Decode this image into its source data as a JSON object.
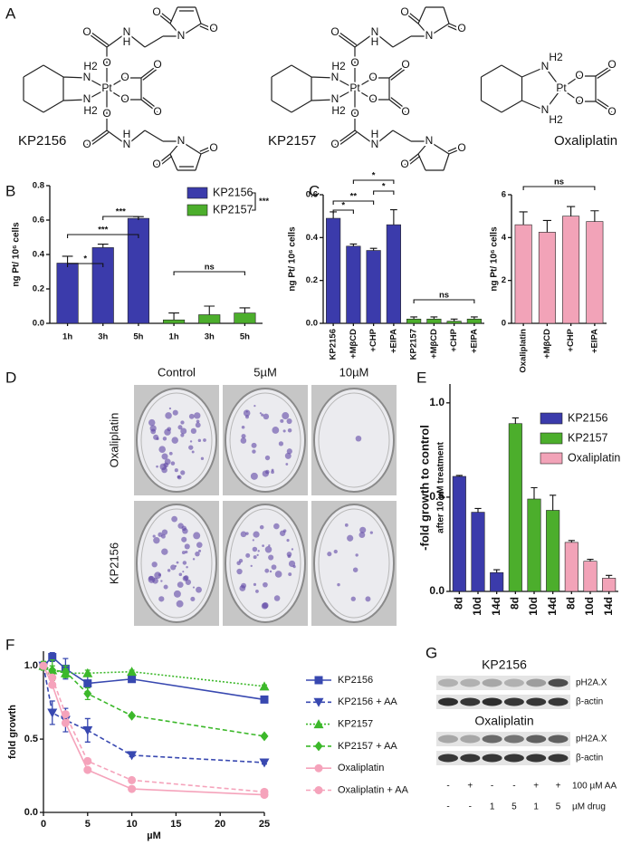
{
  "panel_labels": [
    "A",
    "B",
    "C",
    "D",
    "E",
    "F",
    "G"
  ],
  "structures": [
    {
      "name": "KP2156",
      "atoms": [
        "Pt",
        "N",
        "H2",
        "N",
        "H2",
        "O",
        "O",
        "N",
        "H",
        "N",
        "O",
        "O",
        "O",
        "O",
        "N",
        "H",
        "N",
        "O",
        "O",
        "O",
        "O",
        "O",
        "O"
      ]
    },
    {
      "name": "KP2157",
      "atoms": [
        "Pt",
        "N",
        "H2",
        "N",
        "H2",
        "O",
        "O",
        "N",
        "H",
        "N",
        "O",
        "O",
        "O",
        "O",
        "N",
        "H",
        "N",
        "O",
        "O",
        "O",
        "O",
        "O",
        "O"
      ]
    },
    {
      "name": "Oxaliplatin",
      "atoms": [
        "Pt",
        "N",
        "H2",
        "N",
        "H2",
        "O",
        "O",
        "O",
        "O"
      ]
    }
  ],
  "chart_data": [
    {
      "type": "bar",
      "y_label": "ng Pt/ 10⁶ cells",
      "categories": [
        "1h",
        "3h",
        "5h",
        "1h",
        "3h",
        "5h"
      ],
      "series": [
        {
          "name": "KP2156",
          "color": "#3b3bab",
          "values": [
            0.35,
            0.44,
            0.61,
            null,
            null,
            null
          ],
          "errors": [
            0.04,
            0.02,
            0.01,
            null,
            null,
            null
          ]
        },
        {
          "name": "KP2157",
          "color": "#4cae2c",
          "values": [
            null,
            null,
            null,
            0.02,
            0.05,
            0.06
          ],
          "errors": [
            null,
            null,
            null,
            0.04,
            0.05,
            0.03
          ]
        }
      ],
      "ylim": [
        0,
        0.8
      ],
      "yticks": [
        {
          "value": 0,
          "label": "0.0"
        },
        {
          "value": 0.2,
          "label": "0.2"
        },
        {
          "value": 0.4,
          "label": "0.4"
        },
        {
          "value": 0.6,
          "label": "0.6"
        },
        {
          "value": 0.8,
          "label": "0.8"
        }
      ],
      "legend": "top-right",
      "legend_annotation": "***",
      "annotations": [
        {
          "label": "*",
          "from": 0,
          "to": 1
        },
        {
          "label": "***",
          "from": 0,
          "to": 2
        },
        {
          "label": "***",
          "from": 1,
          "to": 2
        },
        {
          "label": "ns",
          "from": 3,
          "to": 5
        }
      ]
    },
    {
      "type": "bar",
      "y_label": "ng Pt/ 10⁶ cells",
      "categories": [
        "KP2156",
        "+MβCD",
        "+CHP",
        "+EIPA",
        "KP2157",
        "+MβCD",
        "+CHP",
        "+EIPA"
      ],
      "series": [
        {
          "color": "#3b3bab",
          "values": [
            0.49,
            0.36,
            0.34,
            0.46,
            null,
            null,
            null,
            null
          ],
          "errors": [
            0.03,
            0.01,
            0.01,
            0.07,
            null,
            null,
            null,
            null
          ]
        },
        {
          "color": "#4cae2c",
          "values": [
            null,
            null,
            null,
            null,
            0.02,
            0.02,
            0.01,
            0.02
          ],
          "errors": [
            null,
            null,
            null,
            null,
            0.01,
            0.01,
            0.01,
            0.01
          ]
        }
      ],
      "ylim": [
        0,
        0.6
      ],
      "yticks": [
        {
          "value": 0,
          "label": "0.0"
        },
        {
          "value": 0.2,
          "label": "0.2"
        },
        {
          "value": 0.4,
          "label": "0.4"
        },
        {
          "value": 0.6,
          "label": "0.6"
        }
      ],
      "annotations": [
        {
          "label": "*",
          "from": 0,
          "to": 1
        },
        {
          "label": "**",
          "from": 0,
          "to": 2
        },
        {
          "label": "*",
          "from": 2,
          "to": 3
        },
        {
          "label": "*",
          "from": 1,
          "to": 3
        },
        {
          "label": "ns",
          "from": 4,
          "to": 7
        }
      ]
    },
    {
      "type": "bar",
      "y_label": "ng Pt/ 10⁶ cells",
      "categories": [
        "Oxaliplatin",
        "+MβCD",
        "+CHP",
        "+EIPA"
      ],
      "series": [
        {
          "color": "#f2a3b8",
          "values": [
            4.6,
            4.25,
            5.0,
            4.75
          ],
          "errors": [
            0.6,
            0.55,
            0.45,
            0.5
          ]
        }
      ],
      "ylim": [
        0,
        6
      ],
      "yticks": [
        0,
        2,
        4,
        6
      ],
      "annotations": [
        {
          "label": "ns",
          "from": 0,
          "to": 3
        }
      ]
    },
    {
      "type": "bar",
      "y_label": [
        "-fold growth to control",
        "after 10 µM treatment"
      ],
      "categories": [
        "8d",
        "10d",
        "14d",
        "8d",
        "10d",
        "14d",
        "8d",
        "10d",
        "14d"
      ],
      "series": [
        {
          "name": "KP2156",
          "color": "#3b3bab",
          "values": [
            0.61,
            0.42,
            0.1,
            null,
            null,
            null,
            null,
            null,
            null
          ],
          "errors": [
            0.005,
            0.02,
            0.015,
            null,
            null,
            null,
            null,
            null,
            null
          ]
        },
        {
          "name": "KP2157",
          "color": "#4cae2c",
          "values": [
            null,
            null,
            null,
            0.89,
            0.49,
            0.43,
            null,
            null,
            null
          ],
          "errors": [
            null,
            null,
            null,
            0.03,
            0.06,
            0.08,
            null,
            null,
            null
          ]
        },
        {
          "name": "Oxaliplatin",
          "color": "#f2a3b8",
          "values": [
            null,
            null,
            null,
            null,
            null,
            null,
            0.26,
            0.16,
            0.07
          ],
          "errors": [
            null,
            null,
            null,
            null,
            null,
            null,
            0.01,
            0.01,
            0.015
          ]
        }
      ],
      "ylim": [
        0,
        1.1
      ],
      "yticks": [
        {
          "value": 0,
          "label": "0.0"
        },
        {
          "value": 0.5,
          "label": "0.5"
        },
        {
          "value": 1,
          "label": "1.0"
        }
      ],
      "legend": "top-right"
    },
    {
      "type": "line",
      "x_label": "µM",
      "y_label": "fold growth",
      "x": [
        0,
        1,
        2.5,
        5,
        10,
        25
      ],
      "xlim": [
        0,
        25
      ],
      "xticks": [
        0,
        5,
        10,
        15,
        20,
        25
      ],
      "ylim": [
        0,
        1.1
      ],
      "yticks": [
        {
          "value": 0,
          "label": "0.0"
        },
        {
          "value": 0.5,
          "label": "0.5"
        },
        {
          "value": 1,
          "label": "1.0"
        }
      ],
      "legend": "right",
      "series": [
        {
          "name": "KP2156",
          "color": "#3848b0",
          "dash": "solid",
          "marker": "square",
          "values": [
            1.0,
            1.06,
            0.98,
            0.88,
            0.91,
            0.77
          ],
          "errors": [
            0.02,
            0.03,
            0.07,
            0.06,
            0.02,
            0.01
          ]
        },
        {
          "name": "KP2156 + AA",
          "color": "#3848b0",
          "dash": "dashed",
          "marker": "triangle-down",
          "values": [
            1.0,
            0.68,
            0.63,
            0.56,
            0.39,
            0.34
          ],
          "errors": [
            0.02,
            0.08,
            0.08,
            0.08,
            0.01,
            0.01
          ]
        },
        {
          "name": "KP2157",
          "color": "#3cb82a",
          "dash": "dotted",
          "marker": "triangle",
          "values": [
            1.0,
            0.97,
            0.95,
            0.95,
            0.96,
            0.86
          ],
          "errors": [
            0.02,
            0.03,
            0.03,
            0.02,
            0.01,
            0.01
          ]
        },
        {
          "name": "KP2157 + AA",
          "color": "#3cb82a",
          "dash": "dashed",
          "marker": "diamond",
          "values": [
            1.0,
            0.97,
            0.96,
            0.81,
            0.66,
            0.52
          ],
          "errors": [
            0.03,
            0.07,
            0.04,
            0.04,
            0.01,
            0.01
          ]
        },
        {
          "name": "Oxaliplatin",
          "color": "#f5a3bb",
          "dash": "solid",
          "marker": "circle",
          "values": [
            1.0,
            0.87,
            0.61,
            0.29,
            0.16,
            0.12
          ]
        },
        {
          "name": "Oxaliplatin + AA",
          "color": "#f5a3bb",
          "dash": "dashed",
          "marker": "circle",
          "values": [
            1.0,
            0.92,
            0.67,
            0.35,
            0.22,
            0.14
          ]
        }
      ]
    }
  ],
  "colonies": {
    "columns": [
      "Control",
      "5µM",
      "10µM"
    ],
    "rows": [
      "Oxaliplatin",
      "KP2156"
    ]
  },
  "blot": {
    "groups": [
      {
        "title": "KP2156",
        "bands": [
          "pH2A.X",
          "β-actin"
        ]
      },
      {
        "title": "Oxaliplatin",
        "bands": [
          "pH2A.X",
          "β-actin"
        ]
      }
    ],
    "conditions": [
      {
        "label": "100 µM AA",
        "values": [
          "-",
          "+",
          "-",
          "-",
          "+",
          "+"
        ]
      },
      {
        "label": "µM drug",
        "values": [
          "-",
          "-",
          "1",
          "5",
          "1",
          "5"
        ]
      }
    ]
  }
}
